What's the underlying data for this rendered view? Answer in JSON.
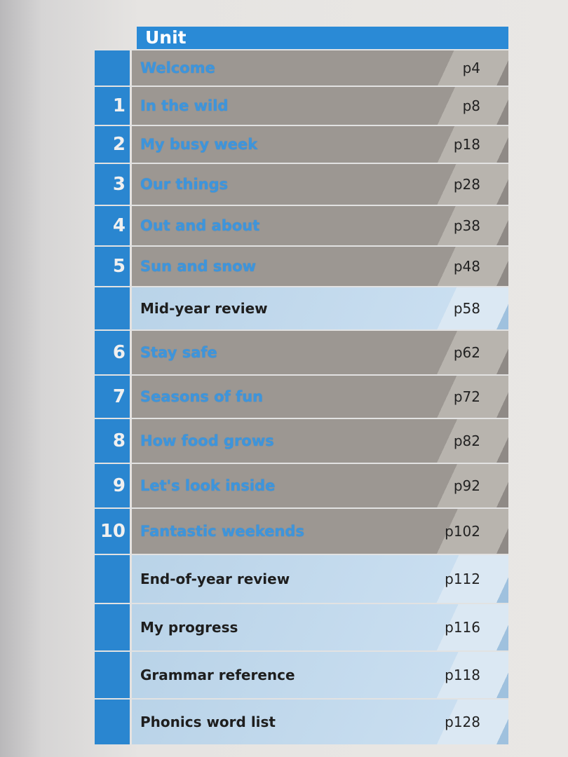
{
  "header": {
    "title": "Unit"
  },
  "rows": [
    {
      "num": "",
      "title": "Welcome",
      "page": "p4",
      "type": "unit"
    },
    {
      "num": "1",
      "title": "In the wild",
      "page": "p8",
      "type": "unit"
    },
    {
      "num": "2",
      "title": "My busy week",
      "page": "p18",
      "type": "unit"
    },
    {
      "num": "3",
      "title": "Our things",
      "page": "p28",
      "type": "unit"
    },
    {
      "num": "4",
      "title": "Out and about",
      "page": "p38",
      "type": "unit"
    },
    {
      "num": "5",
      "title": "Sun and snow",
      "page": "p48",
      "type": "unit"
    },
    {
      "num": "",
      "title": "Mid-year review",
      "page": "p58",
      "type": "extra"
    },
    {
      "num": "6",
      "title": "Stay safe",
      "page": "p62",
      "type": "unit"
    },
    {
      "num": "7",
      "title": "Seasons of fun",
      "page": "p72",
      "type": "unit"
    },
    {
      "num": "8",
      "title": "How food grows",
      "page": "p82",
      "type": "unit"
    },
    {
      "num": "9",
      "title": "Let's look inside",
      "page": "p92",
      "type": "unit"
    },
    {
      "num": "10",
      "title": "Fantastic weekends",
      "page": "p102",
      "type": "unit"
    },
    {
      "num": "",
      "title": "End-of-year review",
      "page": "p112",
      "type": "extra"
    },
    {
      "num": "",
      "title": "My progress",
      "page": "p116",
      "type": "extra"
    },
    {
      "num": "",
      "title": "Grammar reference",
      "page": "p118",
      "type": "extra"
    },
    {
      "num": "",
      "title": "Phonics word list",
      "page": "p128",
      "type": "extra"
    }
  ],
  "colors": {
    "blue": "#2a86d0",
    "unit_row": "#9c9792",
    "extra_row": "#b9d3e8",
    "unit_text": "#3d95dc"
  }
}
